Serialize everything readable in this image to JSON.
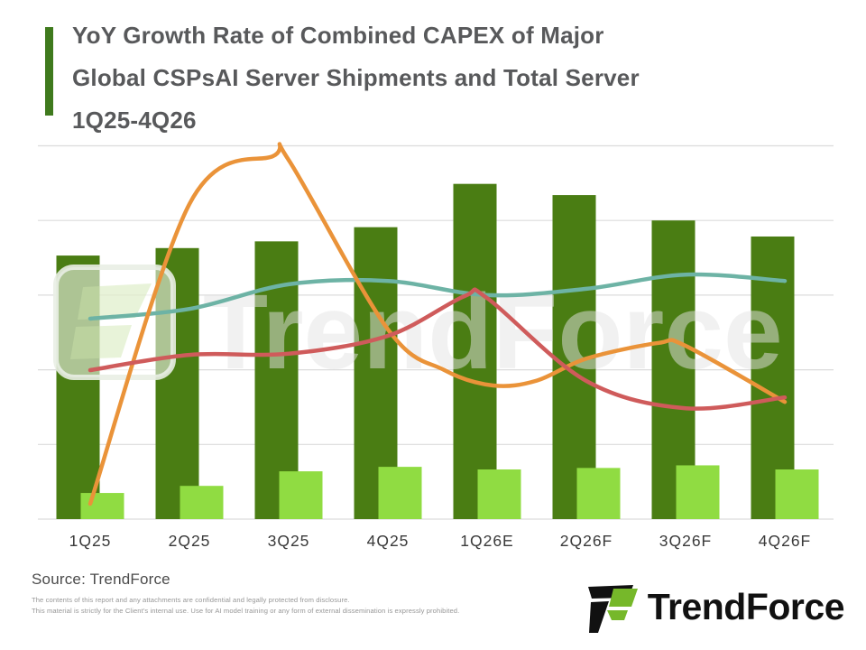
{
  "title": {
    "line1": "YoY Growth Rate of Combined CAPEX of Major",
    "line2": "Global CSPsAI Server Shipments and Total Server",
    "line3": "1Q25-4Q26"
  },
  "watermark": {
    "text": "TrendForce"
  },
  "footer": {
    "source": "Source: TrendForce",
    "disclaimer1": "The contents of this report and any attachments are confidential and legally protected from disclosure.",
    "disclaimer2": "This material is strictly for the Client's internal use. Use for AI model training or any form of external dissemination is expressly prohibited.",
    "logo_text": "TrendForce"
  },
  "colors": {
    "accent_green": "#3f7a1d",
    "dark_bar": "#4a7d13",
    "light_bar": "#90dc42",
    "teal_line": "#6db3a5",
    "orange_line": "#ea9339",
    "red_line": "#cf5b5b",
    "gridline": "#dcdcdc",
    "axis_label": "#3a3a3a",
    "logo_green": "#76b82a",
    "logo_black": "#111111"
  },
  "chart_data": {
    "type": "combo (grouped bars + 3 smooth lines)",
    "title": "YoY Growth Rate of Combined CAPEX of Major Global CSPsAI Server Shipments and Total Server 1Q25-4Q26",
    "categories": [
      "1Q25",
      "2Q25",
      "3Q25",
      "4Q25",
      "1Q26E",
      "2Q26F",
      "3Q26F",
      "4Q26F"
    ],
    "y_axis": {
      "tick_labels_visible": false,
      "unit": "relative % of plot height (no numeric scale shown)",
      "gridline_count": 6
    },
    "bar_series": [
      {
        "name": "dark-green-bars",
        "color_key": "dark_bar",
        "values": [
          70.6,
          72.6,
          74.4,
          78.2,
          89.8,
          86.8,
          80.0,
          75.7
        ]
      },
      {
        "name": "light-green-bars",
        "color_key": "light_bar",
        "values": [
          7.0,
          8.9,
          12.8,
          14.0,
          13.3,
          13.7,
          14.4,
          13.3
        ]
      }
    ],
    "line_series": [
      {
        "name": "teal-line",
        "color_key": "teal_line",
        "points": [
          {
            "x": 0,
            "v": 53.7
          },
          {
            "x": 1,
            "v": 56.3
          },
          {
            "x": 2,
            "v": 62.9
          },
          {
            "x": 3,
            "v": 63.8
          },
          {
            "x": 4,
            "v": 60.0
          },
          {
            "x": 5,
            "v": 61.7
          },
          {
            "x": 6,
            "v": 65.5
          },
          {
            "x": 7,
            "v": 63.8
          }
        ]
      },
      {
        "name": "orange-line",
        "color_key": "orange_line",
        "points": [
          {
            "x": 0,
            "v": 4.1
          },
          {
            "x": 1,
            "v": 84.4
          },
          {
            "x": 1.84,
            "v": 97.2
          },
          {
            "x": 2,
            "v": 96.2
          },
          {
            "x": 3,
            "v": 50.8
          },
          {
            "x": 3.57,
            "v": 39.9
          },
          {
            "x": 4.06,
            "v": 35.8
          },
          {
            "x": 4.5,
            "v": 37.1
          },
          {
            "x": 5,
            "v": 43.0
          },
          {
            "x": 5.73,
            "v": 47.2
          },
          {
            "x": 6,
            "v": 46.4
          },
          {
            "x": 7,
            "v": 31.4
          }
        ]
      },
      {
        "name": "red-line",
        "color_key": "red_line",
        "points": [
          {
            "x": 0,
            "v": 39.9
          },
          {
            "x": 1,
            "v": 44.0
          },
          {
            "x": 2,
            "v": 44.3
          },
          {
            "x": 3,
            "v": 49.1
          },
          {
            "x": 3.77,
            "v": 59.7
          },
          {
            "x": 4,
            "v": 59.2
          },
          {
            "x": 5,
            "v": 37.0
          },
          {
            "x": 6,
            "v": 29.7
          },
          {
            "x": 7,
            "v": 32.6
          }
        ]
      }
    ],
    "legend": "none visible"
  }
}
